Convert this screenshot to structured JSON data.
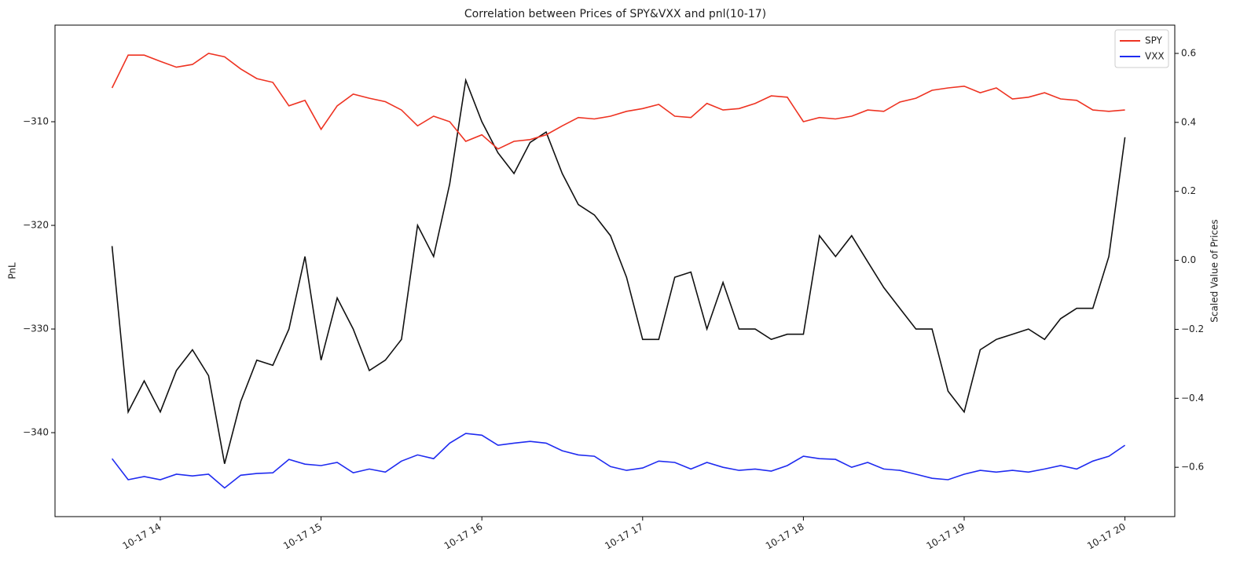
{
  "chart_data": {
    "type": "line",
    "title": "Correlation between Prices of SPY&VXX and pnl(10-17)",
    "ylabel": "PnL",
    "y2label": "Scaled Value of Prices",
    "x": [
      13.7,
      13.8,
      13.9,
      14.0,
      14.1,
      14.2,
      14.3,
      14.4,
      14.5,
      14.6,
      14.7,
      14.8,
      14.9,
      15.0,
      15.1,
      15.2,
      15.3,
      15.4,
      15.5,
      15.6,
      15.7,
      15.8,
      15.9,
      16.0,
      16.1,
      16.2,
      16.3,
      16.4,
      16.5,
      16.6,
      16.7,
      16.8,
      16.9,
      17.0,
      17.1,
      17.2,
      17.3,
      17.4,
      17.5,
      17.6,
      17.7,
      17.8,
      17.9,
      18.0,
      18.1,
      18.2,
      18.3,
      18.4,
      18.5,
      18.6,
      18.7,
      18.8,
      18.9,
      19.0,
      19.1,
      19.2,
      19.3,
      19.4,
      19.5,
      19.6,
      19.7,
      19.8,
      19.9,
      20.0
    ],
    "xlim": [
      13.345,
      20.31
    ],
    "xticks": [
      {
        "value": 14,
        "label": "10-17 14"
      },
      {
        "value": 15,
        "label": "10-17 15"
      },
      {
        "value": 16,
        "label": "10-17 16"
      },
      {
        "value": 17,
        "label": "10-17 17"
      },
      {
        "value": 18,
        "label": "10-17 18"
      },
      {
        "value": 19,
        "label": "10-17 19"
      },
      {
        "value": 20,
        "label": "10-17 20"
      }
    ],
    "ylim": [
      -348.1,
      -300.68
    ],
    "yticks": [
      {
        "value": -310,
        "label": "−310"
      },
      {
        "value": -320,
        "label": "−320"
      },
      {
        "value": -330,
        "label": "−330"
      },
      {
        "value": -340,
        "label": "−340"
      }
    ],
    "y2lim": [
      -0.743,
      0.682
    ],
    "y2ticks": [
      0.6,
      0.4,
      0.2,
      {
        "value": 0,
        "label": "0.0"
      },
      {
        "value": -0.2,
        "label": "−0.2"
      },
      {
        "value": -0.4,
        "label": "−0.4"
      },
      {
        "value": -0.6,
        "label": "−0.6"
      }
    ],
    "legend": "upper right",
    "series": [
      {
        "color": "#111111",
        "axis": "y",
        "values": [
          -322,
          -338,
          -335,
          -338,
          -334,
          -332,
          -334.5,
          -343,
          -337,
          -333,
          -333.5,
          -330,
          -323,
          -333,
          -327,
          -330,
          -334,
          -333,
          -331,
          -320,
          -323,
          -316,
          -306,
          -310,
          -313,
          -315,
          -312,
          -311,
          -315,
          -318,
          -319,
          -321,
          -325,
          -331,
          -331,
          -325,
          -324.5,
          -330,
          -325.5,
          -330,
          -330,
          -331,
          -330.5,
          -330.5,
          -321,
          -323,
          -321,
          -323.5,
          -326,
          -328,
          -330,
          -330,
          -336,
          -338,
          -332,
          -331,
          -330.5,
          -330,
          -331,
          -329,
          -328,
          -328,
          -323,
          -311.5
        ]
      },
      {
        "name": "SPY",
        "color": "#ee3322",
        "axis": "y2",
        "values": [
          0.5,
          0.595,
          0.595,
          0.577,
          0.56,
          0.568,
          0.6,
          0.59,
          0.555,
          0.527,
          0.516,
          0.448,
          0.464,
          0.38,
          0.448,
          0.482,
          0.47,
          0.46,
          0.436,
          0.39,
          0.418,
          0.402,
          0.345,
          0.364,
          0.323,
          0.345,
          0.35,
          0.364,
          0.39,
          0.414,
          0.41,
          0.418,
          0.432,
          0.44,
          0.452,
          0.418,
          0.414,
          0.455,
          0.436,
          0.44,
          0.455,
          0.477,
          0.473,
          0.402,
          0.414,
          0.41,
          0.418,
          0.436,
          0.432,
          0.459,
          0.47,
          0.493,
          0.5,
          0.505,
          0.486,
          0.5,
          0.468,
          0.473,
          0.486,
          0.468,
          0.464,
          0.436,
          0.432,
          0.436
        ]
      },
      {
        "name": "VXX",
        "color": "#1f2bf0",
        "axis": "y2",
        "values": [
          -0.575,
          -0.636,
          -0.627,
          -0.636,
          -0.62,
          -0.625,
          -0.62,
          -0.66,
          -0.623,
          -0.618,
          -0.616,
          -0.577,
          -0.591,
          -0.595,
          -0.586,
          -0.616,
          -0.605,
          -0.614,
          -0.582,
          -0.564,
          -0.575,
          -0.53,
          -0.502,
          -0.507,
          -0.536,
          -0.53,
          -0.525,
          -0.53,
          -0.552,
          -0.564,
          -0.568,
          -0.598,
          -0.609,
          -0.602,
          -0.582,
          -0.586,
          -0.605,
          -0.586,
          -0.6,
          -0.609,
          -0.605,
          -0.611,
          -0.595,
          -0.568,
          -0.575,
          -0.577,
          -0.6,
          -0.586,
          -0.605,
          -0.609,
          -0.62,
          -0.632,
          -0.636,
          -0.62,
          -0.609,
          -0.614,
          -0.609,
          -0.614,
          -0.605,
          -0.595,
          -0.605,
          -0.582,
          -0.568,
          -0.536
        ]
      }
    ]
  }
}
